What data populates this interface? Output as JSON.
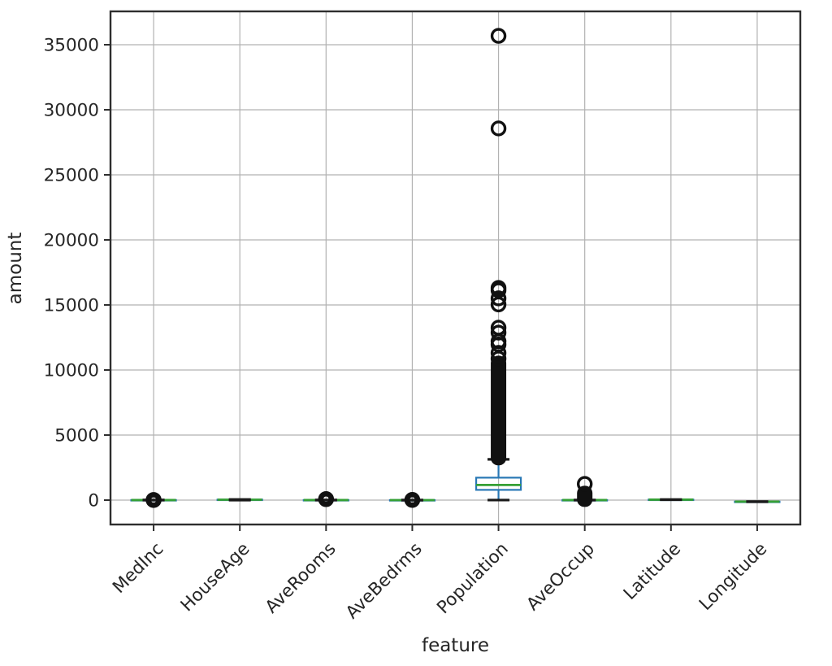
{
  "chart_data": {
    "type": "box",
    "title": "",
    "xlabel": "feature",
    "ylabel": "amount",
    "categories": [
      "MedInc",
      "HouseAge",
      "AveRooms",
      "AveBedrms",
      "Population",
      "AveOccup",
      "Latitude",
      "Longitude"
    ],
    "y_ticks": [
      0,
      5000,
      10000,
      15000,
      20000,
      25000,
      30000,
      35000
    ],
    "ylim": [
      -1875,
      37562
    ],
    "grid": true,
    "legend": false,
    "colors": {
      "box": "#2878b5",
      "median": "#35a035",
      "whisker": "#2878b5",
      "cap": "#1a1a1a",
      "flier": "#111111",
      "grid": "#b2b2b2",
      "spine": "#2e2e2e",
      "text": "#262626",
      "background": "#ffffff"
    },
    "series": [
      {
        "name": "MedInc",
        "whisker_low": 0.5,
        "q1": 2.56,
        "median": 3.53,
        "q3": 4.74,
        "whisker_high": 8.01,
        "outliers": [],
        "outliers_dense": {
          "min": 8.1,
          "max": 15.0,
          "step": 0.4
        }
      },
      {
        "name": "HouseAge",
        "whisker_low": 1,
        "q1": 18,
        "median": 29,
        "q3": 37,
        "whisker_high": 52,
        "outliers": [],
        "outliers_dense": null
      },
      {
        "name": "AveRooms",
        "whisker_low": 2.0,
        "q1": 4.44,
        "median": 5.23,
        "q3": 6.05,
        "whisker_high": 8.5,
        "outliers": [],
        "outliers_dense": {
          "min": 8.6,
          "max": 141.9,
          "step": 2
        }
      },
      {
        "name": "AveBedrms",
        "whisker_low": 0.89,
        "q1": 1.01,
        "median": 1.05,
        "q3": 1.1,
        "whisker_high": 1.24,
        "outliers": [],
        "outliers_dense": {
          "min": 1.3,
          "max": 34.1,
          "step": 1
        }
      },
      {
        "name": "Population",
        "whisker_low": 3,
        "q1": 787,
        "median": 1166,
        "q3": 1725,
        "whisker_high": 3132,
        "outliers": [
          35682,
          28566,
          16305,
          16122,
          15507,
          15037,
          13251,
          12873,
          12203,
          11956,
          11312,
          10877
        ],
        "outliers_dense": {
          "min": 3200,
          "max": 10600,
          "step": 45
        }
      },
      {
        "name": "AveOccup",
        "whisker_low": 0.69,
        "q1": 2.43,
        "median": 2.82,
        "q3": 3.28,
        "whisker_high": 4.56,
        "outliers": [
          1243.3
        ],
        "outliers_dense": {
          "min": 5,
          "max": 600,
          "step": 35
        }
      },
      {
        "name": "Latitude",
        "whisker_low": 32.54,
        "q1": 33.93,
        "median": 34.26,
        "q3": 37.71,
        "whisker_high": 41.95,
        "outliers": [],
        "outliers_dense": null
      },
      {
        "name": "Longitude",
        "whisker_low": -124.35,
        "q1": -121.8,
        "median": -118.49,
        "q3": -118.01,
        "whisker_high": -114.31,
        "outliers": [],
        "outliers_dense": null
      }
    ]
  }
}
